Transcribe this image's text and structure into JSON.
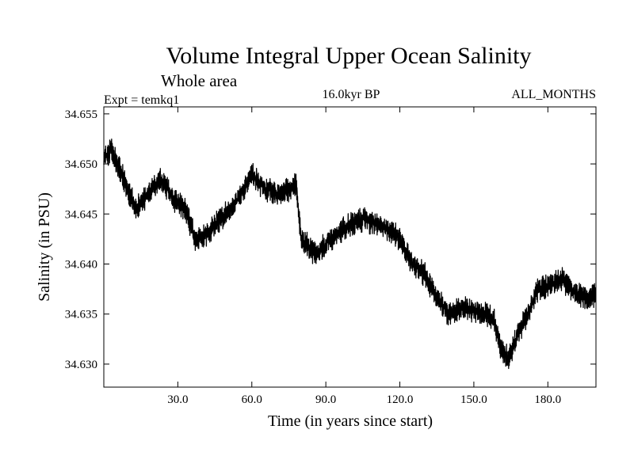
{
  "chart_data": {
    "type": "line",
    "title": "Volume Integral Upper Ocean Salinity",
    "subtitle": "Whole area",
    "experiment_label": "Expt = temkq1",
    "period_label": "16.0kyr BP",
    "months_label": "ALL_MONTHS",
    "xlabel": "Time (in years since start)",
    "ylabel": "Salinity (in PSU)",
    "xlim": [
      0,
      199.5
    ],
    "ylim": [
      34.6277,
      34.6557
    ],
    "xticks": [
      30,
      60,
      90,
      120,
      150,
      180
    ],
    "xtick_labels": [
      "30.0",
      "60.0",
      "90.0",
      "120.0",
      "150.0",
      "180.0"
    ],
    "yticks": [
      34.63,
      34.635,
      34.64,
      34.645,
      34.65,
      34.655
    ],
    "ytick_labels": [
      "34.630",
      "34.635",
      "34.640",
      "34.645",
      "34.650",
      "34.655"
    ],
    "grid": false,
    "series": [
      {
        "name": "Salinity",
        "sample_interval_years": 0.0833,
        "amplitude": 0.0013,
        "trend_x": [
          0,
          3,
          8,
          13,
          18,
          23,
          28,
          33,
          37,
          42,
          47,
          52,
          57,
          60,
          65,
          70,
          76,
          78,
          80,
          86,
          90,
          95,
          100,
          106,
          110,
          115,
          120,
          125,
          130,
          135,
          140,
          145,
          150,
          155,
          158,
          161,
          164,
          167,
          171,
          176,
          181,
          186,
          191,
          196,
          199.5
        ],
        "trend_y": [
          34.6505,
          34.6515,
          34.6485,
          34.6455,
          34.647,
          34.6485,
          34.6465,
          34.6455,
          34.6425,
          34.643,
          34.6445,
          34.6455,
          34.6475,
          34.649,
          34.6475,
          34.647,
          34.6475,
          34.648,
          34.6425,
          34.641,
          34.642,
          34.643,
          34.644,
          34.6445,
          34.644,
          34.6435,
          34.6425,
          34.64,
          34.639,
          34.6365,
          34.635,
          34.6355,
          34.6355,
          34.635,
          34.6345,
          34.6315,
          34.6305,
          34.6325,
          34.6345,
          34.6375,
          34.638,
          34.6385,
          34.637,
          34.6365,
          34.637
        ]
      }
    ]
  }
}
